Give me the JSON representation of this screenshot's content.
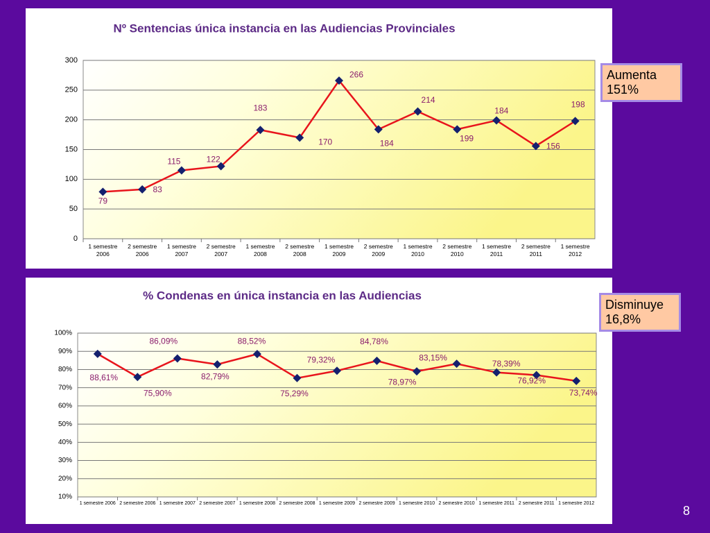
{
  "chart_data": [
    {
      "type": "line",
      "title": "Nº Sentencias única instancia en las Audiencias Provinciales",
      "categories": [
        "1 semestre 2006",
        "2 semestre 2006",
        "1 semestre 2007",
        "2 semestre 2007",
        "1 semestre 2008",
        "2 semestre 2008",
        "1 semestre 2009",
        "2 semestre 2009",
        "1 semestre 2010",
        "2 semestre 2010",
        "1 semestre 2011",
        "2 semestre 2011",
        "1 semestre 2012"
      ],
      "series": [
        {
          "color": "#e8141c",
          "values": [
            79,
            83,
            115,
            122,
            183,
            170,
            266,
            184,
            214,
            184,
            199,
            156,
            198
          ]
        }
      ],
      "ylim": [
        0,
        300
      ],
      "yticks": [
        0,
        50,
        100,
        150,
        200,
        250,
        300
      ],
      "grid": true
    },
    {
      "type": "line",
      "title": "% Condenas en única instancia en las Audiencias",
      "categories": [
        "1 semestre 2006",
        "2 semestre 2006",
        "1 semestre 2007",
        "2 semestre 2007",
        "1 semestre 2008",
        "2 semestre 2008",
        "1 semestre 2009",
        "2 semestre 2009",
        "1 semestre 2010",
        "2 semestre 2010",
        "1 semestre 2011",
        "2 semestre 2011",
        "1 semestre 2012"
      ],
      "series": [
        {
          "color": "#e8141c",
          "values": [
            88.61,
            75.9,
            86.09,
            82.79,
            88.52,
            75.29,
            79.32,
            84.78,
            78.97,
            83.15,
            78.39,
            76.92,
            73.74
          ],
          "value_labels": [
            "88,61%",
            "75,90%",
            "86,09%",
            "82,79%",
            "88,52%",
            "75,29%",
            "79,32%",
            "84,78%",
            "78,97%",
            "83,15%",
            "78,39%",
            "76,92%",
            "73,74%"
          ]
        }
      ],
      "ylim": [
        10,
        100
      ],
      "yticks": [
        {
          "value": 10,
          "label": "10%"
        },
        {
          "value": 20,
          "label": "20%"
        },
        {
          "value": 30,
          "label": "30%"
        },
        {
          "value": 40,
          "label": "40%"
        },
        {
          "value": 50,
          "label": "50%"
        },
        {
          "value": 60,
          "label": "60%"
        },
        {
          "value": 70,
          "label": "70%"
        },
        {
          "value": 80,
          "label": "80%"
        },
        {
          "value": 90,
          "label": "90%"
        },
        {
          "value": 100,
          "label": "100%"
        }
      ],
      "grid": true
    }
  ],
  "annotations": [
    "Aumenta 151%",
    "Disminuye 16,8%"
  ],
  "page_number": "8"
}
